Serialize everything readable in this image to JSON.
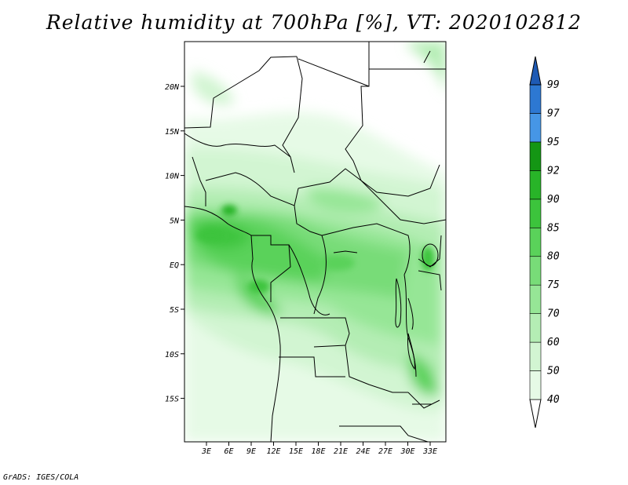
{
  "title": "Relative humidity at 700hPa [%], VT: 2020102812",
  "credit": "GrADS: IGES/COLA",
  "map": {
    "lat_ticks": [
      "20N",
      "15N",
      "10N",
      "5N",
      "EQ",
      "5S",
      "10S",
      "15S"
    ],
    "lon_ticks": [
      "3E",
      "6E",
      "9E",
      "12E",
      "15E",
      "18E",
      "21E",
      "24E",
      "27E",
      "30E",
      "33E"
    ]
  },
  "colorbar": {
    "levels": [
      "40",
      "50",
      "60",
      "70",
      "75",
      "80",
      "85",
      "90",
      "92",
      "95",
      "97",
      "99"
    ],
    "colors": [
      "#ffffff",
      "#e6fae6",
      "#d2f5d2",
      "#b4edb4",
      "#96e696",
      "#78dc78",
      "#5ad25a",
      "#3cc43c",
      "#28b428",
      "#149614",
      "#4696e6",
      "#2d78d2",
      "#1e5ab4"
    ]
  }
}
